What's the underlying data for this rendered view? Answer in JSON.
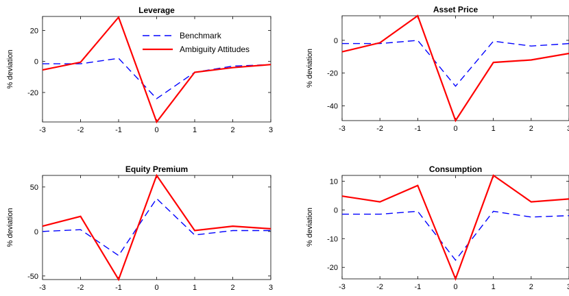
{
  "chart_data": [
    {
      "type": "line",
      "title": "Leverage",
      "xlabel": "",
      "ylabel": "% deviation",
      "x": [
        -3,
        -2,
        -1,
        0,
        1,
        2,
        3
      ],
      "xticks": [
        "-3",
        "-2",
        "-1",
        "0",
        "1",
        "2",
        "3"
      ],
      "ylim": [
        -39,
        29
      ],
      "yticks": [
        "20",
        "0",
        "-20"
      ],
      "grid": false,
      "legend": "top-right",
      "series": [
        {
          "name": "Benchmark",
          "style": "dashed",
          "color": "#0000ff",
          "values": [
            -1.5,
            -1.5,
            2,
            -24,
            -7,
            -3,
            -2
          ]
        },
        {
          "name": "Ambiguity Attitudes",
          "style": "solid",
          "color": "#ff0000",
          "values": [
            -5.5,
            -0.5,
            28.5,
            -39,
            -7,
            -4,
            -2
          ]
        }
      ]
    },
    {
      "type": "line",
      "title": "Asset Price",
      "xlabel": "",
      "ylabel": "% deviation",
      "x": [
        -3,
        -2,
        -1,
        0,
        1,
        2,
        3
      ],
      "xticks": [
        "-3",
        "-2",
        "-1",
        "0",
        "1",
        "2",
        "3"
      ],
      "ylim": [
        -49,
        15
      ],
      "yticks": [
        "0",
        "-20",
        "-40"
      ],
      "grid": false,
      "series": [
        {
          "style": "dashed",
          "color": "#0000ff",
          "values": [
            -2,
            -2,
            0,
            -28,
            -0.5,
            -3.5,
            -2
          ]
        },
        {
          "style": "solid",
          "color": "#ff0000",
          "values": [
            -7,
            -1.5,
            15,
            -49,
            -13.5,
            -12,
            -8
          ]
        }
      ]
    },
    {
      "type": "line",
      "title": "Equity Premium",
      "xlabel": "",
      "ylabel": "% deviation",
      "x": [
        -3,
        -2,
        -1,
        0,
        1,
        2,
        3
      ],
      "xticks": [
        "-3",
        "-2",
        "-1",
        "0",
        "1",
        "2",
        "3"
      ],
      "ylim": [
        -54,
        63
      ],
      "yticks": [
        "50",
        "0",
        "-50"
      ],
      "grid": false,
      "series": [
        {
          "style": "dashed",
          "color": "#0000ff",
          "values": [
            0,
            2,
            -27,
            37,
            -4,
            1,
            1
          ]
        },
        {
          "style": "solid",
          "color": "#ff0000",
          "values": [
            6,
            17,
            -54,
            63,
            1,
            6,
            3
          ]
        }
      ]
    },
    {
      "type": "line",
      "title": "Consumption",
      "xlabel": "",
      "ylabel": "% deviation",
      "x": [
        -3,
        -2,
        -1,
        0,
        1,
        2,
        3
      ],
      "xticks": [
        "-3",
        "-2",
        "-1",
        "0",
        "1",
        "2",
        "3"
      ],
      "ylim": [
        -24,
        12
      ],
      "yticks": [
        "10",
        "0",
        "-10",
        "-20"
      ],
      "grid": false,
      "series": [
        {
          "style": "dashed",
          "color": "#0000ff",
          "values": [
            -1.5,
            -1.5,
            -0.5,
            -17.5,
            -0.5,
            -2.5,
            -2
          ]
        },
        {
          "style": "solid",
          "color": "#ff0000",
          "values": [
            4.8,
            2.8,
            8.5,
            -24,
            12,
            2.8,
            3.8
          ]
        }
      ]
    }
  ]
}
